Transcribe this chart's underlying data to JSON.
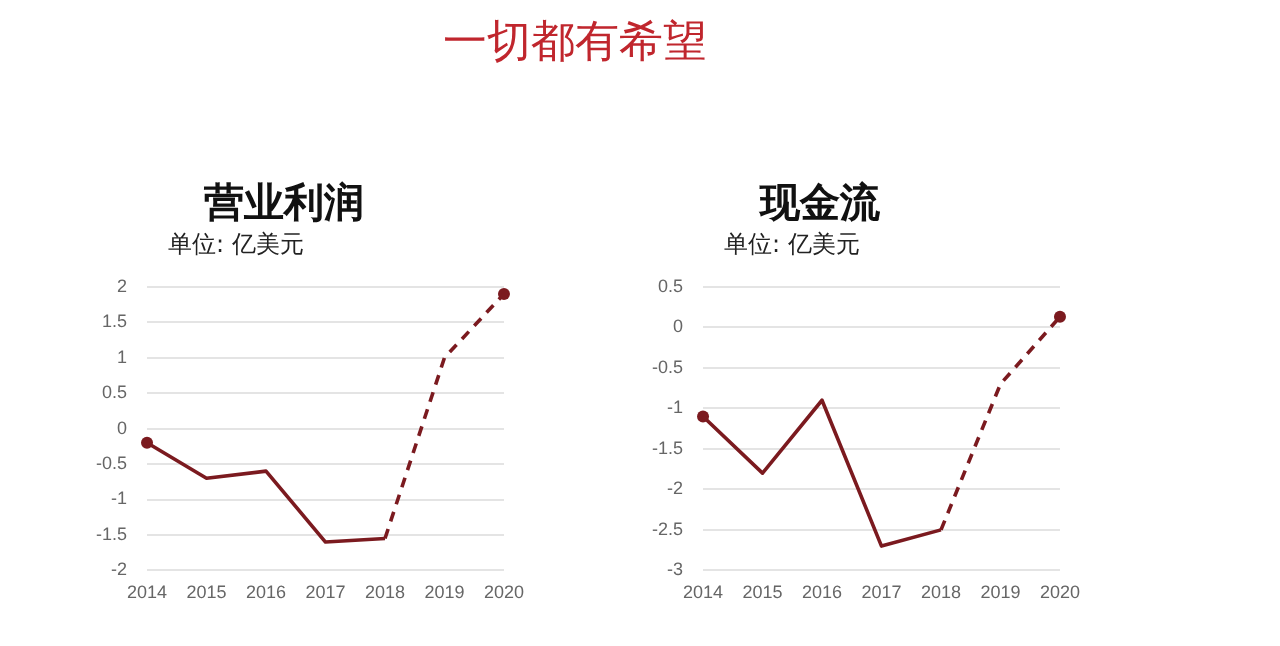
{
  "chart_data": [
    {
      "type": "other",
      "title": "一切都有希望"
    },
    {
      "type": "line",
      "title": "营业利润",
      "subtitle": "单位:  亿美元",
      "categories": [
        "2014",
        "2015",
        "2016",
        "2017",
        "2018",
        "2019",
        "2020"
      ],
      "series": [
        {
          "color": "#7b1a1f",
          "line_style": "solid",
          "marker": "none",
          "values": [
            -0.2,
            -0.7,
            -0.6,
            -1.6,
            -1.55,
            null,
            null
          ]
        },
        {
          "color": "#7b1a1f",
          "line_style": "dashed",
          "marker": "none",
          "values": [
            null,
            null,
            null,
            null,
            -1.55,
            1.0,
            1.9
          ]
        },
        {
          "type": "scatter",
          "color": "#7b1a1f",
          "marker": "circle",
          "values": [
            -0.2,
            null,
            null,
            null,
            null,
            null,
            1.9
          ]
        }
      ],
      "ylim": [
        -2,
        2
      ],
      "yticks": [
        {
          "value": -2,
          "label": "-2"
        },
        {
          "value": -1.5,
          "label": "-1.5"
        },
        {
          "value": -1,
          "label": "-1"
        },
        {
          "value": -0.5,
          "label": "-0.5"
        },
        {
          "value": 0,
          "label": "0"
        },
        {
          "value": 0.5,
          "label": "0.5"
        },
        {
          "value": 1,
          "label": "1"
        },
        {
          "value": 1.5,
          "label": "1.5"
        },
        {
          "value": 2,
          "label": "2"
        }
      ],
      "grid": "y",
      "legend": false
    },
    {
      "type": "line",
      "title": "现金流",
      "subtitle": "单位:  亿美元",
      "categories": [
        "2014",
        "2015",
        "2016",
        "2017",
        "2018",
        "2019",
        "2020"
      ],
      "series": [
        {
          "color": "#7b1a1f",
          "line_style": "solid",
          "marker": "none",
          "values": [
            -1.1,
            -1.8,
            -0.9,
            -2.7,
            -2.5,
            null,
            null
          ]
        },
        {
          "color": "#7b1a1f",
          "line_style": "dashed",
          "marker": "none",
          "values": [
            null,
            null,
            null,
            null,
            -2.5,
            -0.7,
            0.13
          ]
        },
        {
          "type": "scatter",
          "color": "#7b1a1f",
          "marker": "circle",
          "values": [
            -1.1,
            null,
            null,
            null,
            null,
            null,
            0.13
          ]
        }
      ],
      "ylim": [
        -3,
        0.5
      ],
      "yticks": [
        {
          "value": -3,
          "label": "-3"
        },
        {
          "value": -2.5,
          "label": "-2.5"
        },
        {
          "value": -2,
          "label": "-2"
        },
        {
          "value": -1.5,
          "label": "-1.5"
        },
        {
          "value": -1,
          "label": "-1"
        },
        {
          "value": -0.5,
          "label": "-0.5"
        },
        {
          "value": 0,
          "label": "0"
        },
        {
          "value": 0.5,
          "label": "0.5"
        }
      ],
      "grid": "y",
      "legend": false
    }
  ]
}
